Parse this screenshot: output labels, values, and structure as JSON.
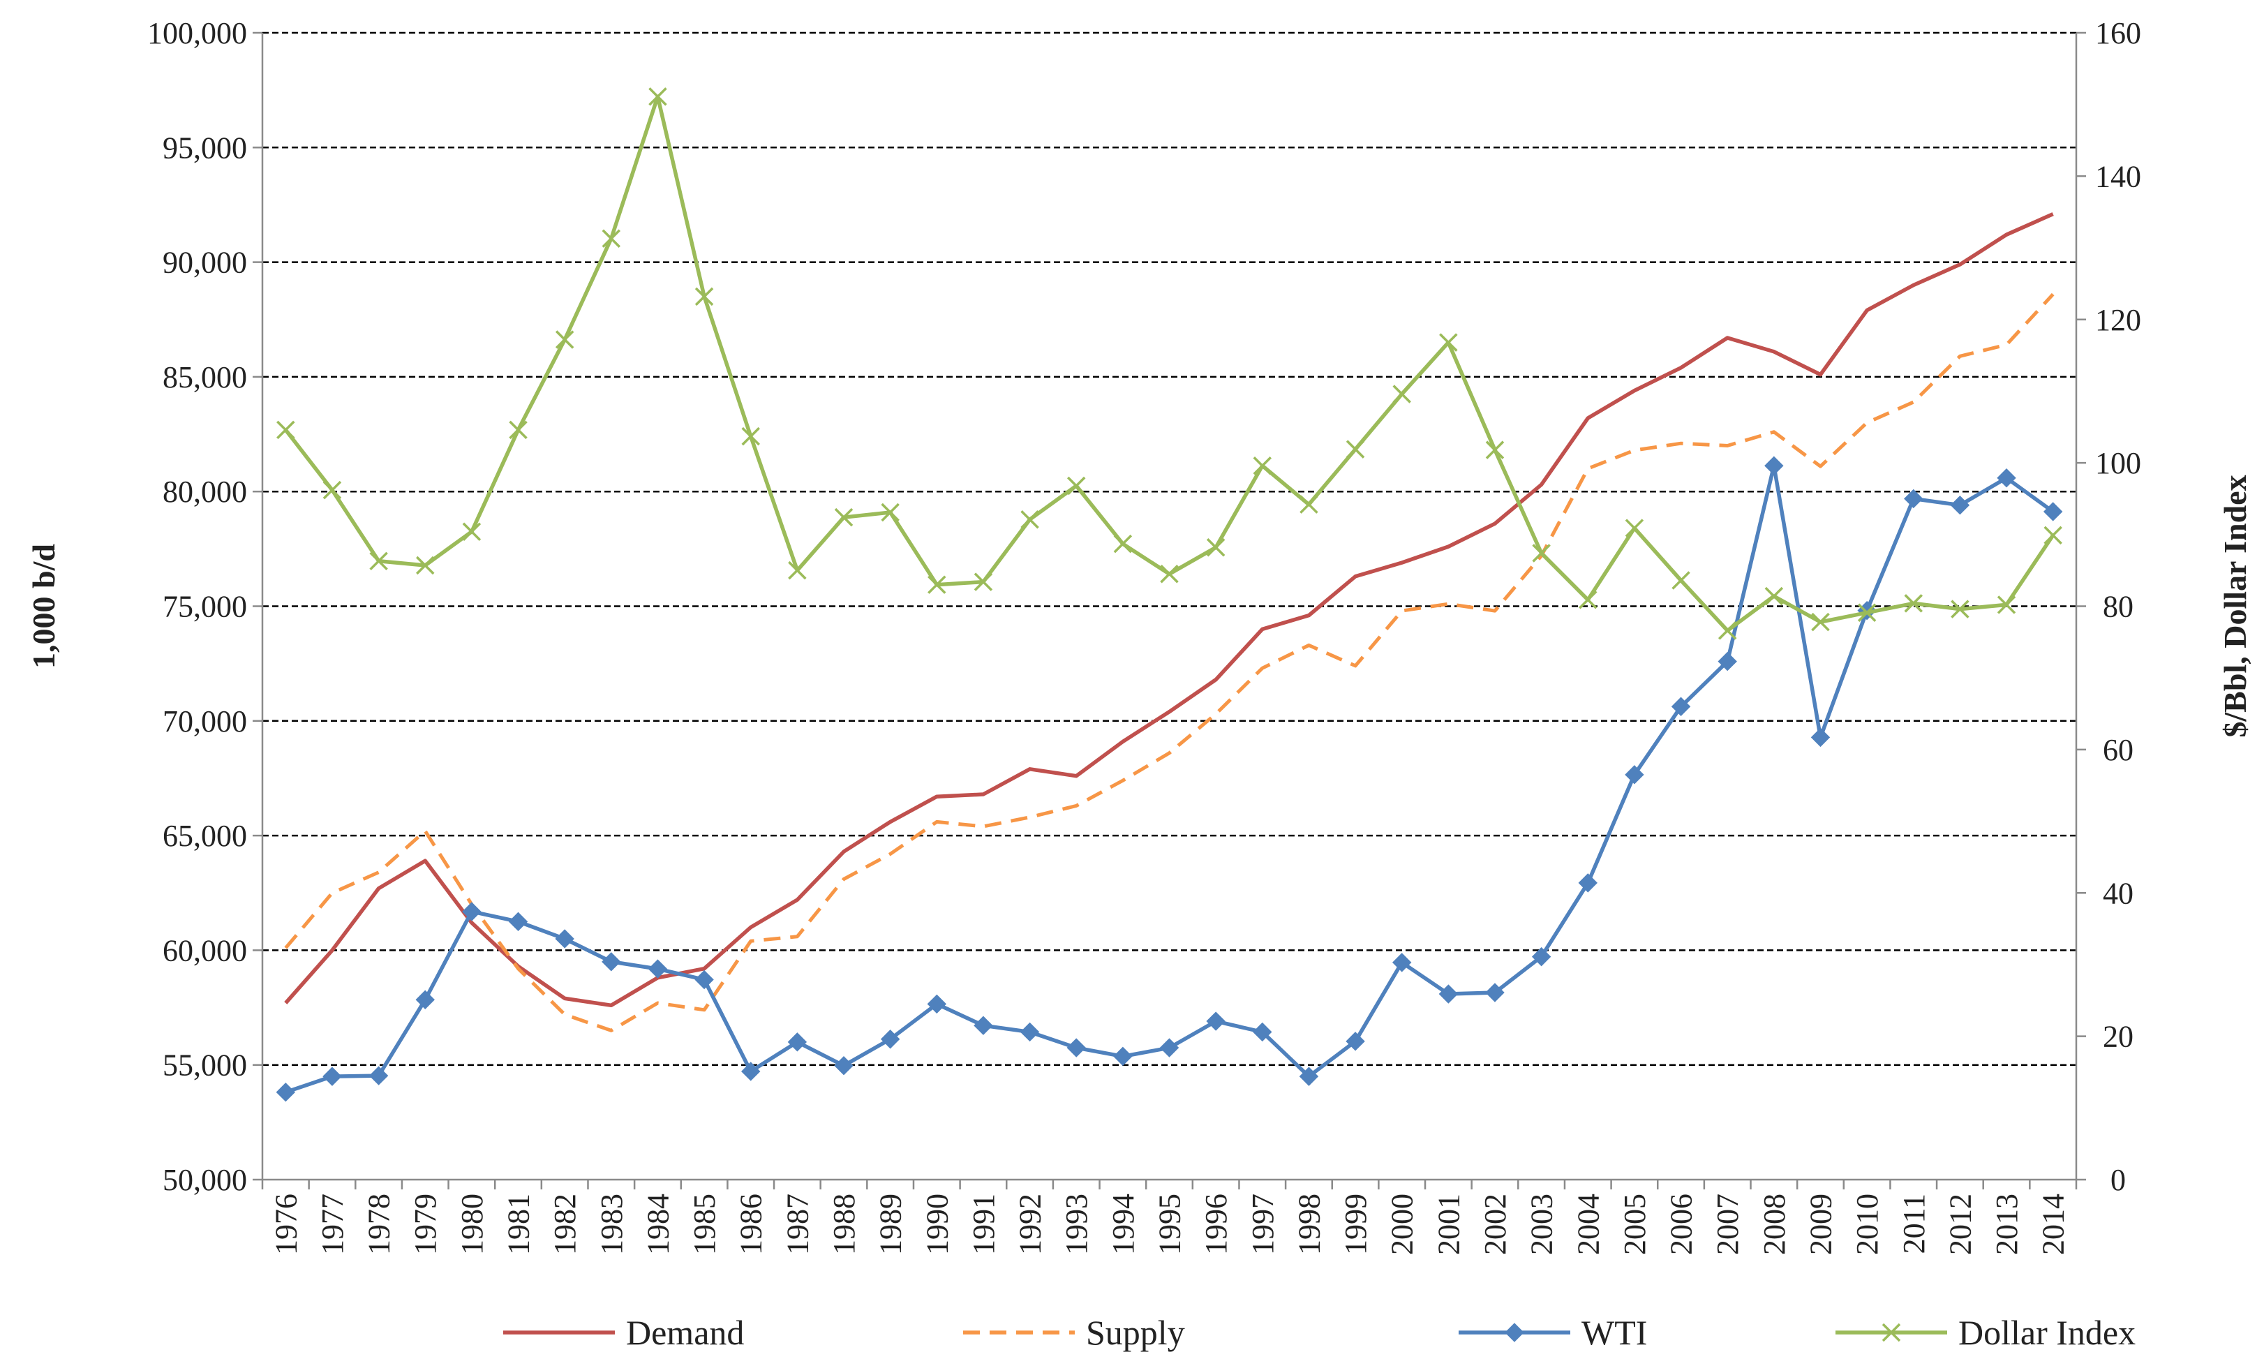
{
  "chart_data": {
    "type": "line",
    "x": [
      1976,
      1977,
      1978,
      1979,
      1980,
      1981,
      1982,
      1983,
      1984,
      1985,
      1986,
      1987,
      1988,
      1989,
      1990,
      1991,
      1992,
      1993,
      1994,
      1995,
      1996,
      1997,
      1998,
      1999,
      2000,
      2001,
      2002,
      2003,
      2004,
      2005,
      2006,
      2007,
      2008,
      2009,
      2010,
      2011,
      2012,
      2013,
      2014
    ],
    "y_left": {
      "label": "1,000 b/d",
      "range": [
        50000,
        100000
      ],
      "ticks": [
        "50,000",
        "55,000",
        "60,000",
        "65,000",
        "70,000",
        "75,000",
        "80,000",
        "85,000",
        "90,000",
        "95,000",
        "100,000"
      ]
    },
    "y_right": {
      "label": "$/Bbl, Dollar Index",
      "range": [
        0,
        160
      ],
      "ticks": [
        "0",
        "20",
        "40",
        "60",
        "80",
        "100",
        "120",
        "140",
        "160"
      ]
    },
    "grid": "horizontal dashed",
    "legend_position": "bottom",
    "series": [
      {
        "name": "Demand",
        "axis": "left",
        "color": "#c0504d",
        "style": "solid",
        "marker": "none",
        "values": [
          57700,
          60000,
          62700,
          63900,
          61200,
          59300,
          57900,
          57600,
          58800,
          59200,
          61000,
          62200,
          64300,
          65600,
          66700,
          66800,
          67900,
          67600,
          69100,
          70400,
          71800,
          74000,
          74600,
          76300,
          76900,
          77600,
          78600,
          80300,
          83200,
          84400,
          85400,
          86700,
          86100,
          85100,
          87900,
          89000,
          89900,
          91200,
          92100
        ]
      },
      {
        "name": "Supply",
        "axis": "left",
        "color": "#f79646",
        "style": "dashed",
        "marker": "none",
        "values": [
          60100,
          62500,
          63400,
          65200,
          62000,
          59200,
          57200,
          56500,
          57700,
          57400,
          60400,
          60600,
          63100,
          64200,
          65600,
          65400,
          65800,
          66300,
          67400,
          68600,
          70300,
          72300,
          73300,
          72400,
          74800,
          75100,
          74800,
          77200,
          81000,
          81800,
          82100,
          82000,
          82600,
          81100,
          83000,
          83900,
          85900,
          86400,
          88600
        ]
      },
      {
        "name": "WTI",
        "axis": "right",
        "color": "#4f81bd",
        "style": "solid",
        "marker": "diamond",
        "values": [
          12.2,
          14.4,
          14.5,
          25.1,
          37.4,
          36.0,
          33.6,
          30.4,
          29.4,
          27.9,
          15.1,
          19.2,
          15.9,
          19.6,
          24.5,
          21.5,
          20.6,
          18.4,
          17.2,
          18.4,
          22.1,
          20.6,
          14.4,
          19.3,
          30.3,
          25.9,
          26.1,
          31.1,
          41.4,
          56.5,
          66.0,
          72.3,
          99.6,
          61.7,
          79.4,
          95.0,
          94.1,
          97.9,
          93.2
        ]
      },
      {
        "name": "Dollar Index",
        "axis": "right",
        "color": "#9bbb59",
        "style": "solid",
        "marker": "x",
        "values": [
          104.6,
          96.2,
          86.3,
          85.7,
          90.4,
          104.6,
          117.2,
          131.3,
          151.1,
          123.2,
          103.7,
          85.0,
          92.4,
          93.1,
          83.0,
          83.4,
          92.1,
          96.8,
          88.7,
          84.5,
          88.2,
          99.6,
          94.2,
          101.9,
          109.6,
          116.8,
          101.8,
          87.4,
          80.9,
          90.9,
          83.6,
          76.6,
          81.4,
          77.8,
          79.1,
          80.4,
          79.6,
          80.2,
          89.9
        ]
      }
    ]
  }
}
